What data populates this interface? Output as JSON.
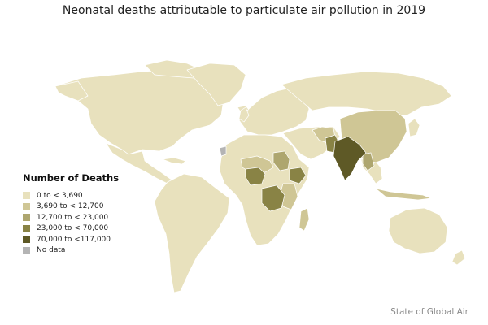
{
  "title": "Neonatal deaths attributable to particulate air pollution in 2019",
  "legend": {
    "title": "Number of Deaths",
    "items": [
      {
        "label": "0 to < 3,690",
        "color": "#e8e1bd"
      },
      {
        "label": "3,690 to < 12,700",
        "color": "#cfc695"
      },
      {
        "label": "12,700 to < 23,000",
        "color": "#aea66f"
      },
      {
        "label": "23,000 to < 70,000",
        "color": "#898345"
      },
      {
        "label": "70,000 to <117,000",
        "color": "#5e5926"
      },
      {
        "label": "No data",
        "color": "#b4b4b4"
      }
    ]
  },
  "credit": "State of Global Air"
}
